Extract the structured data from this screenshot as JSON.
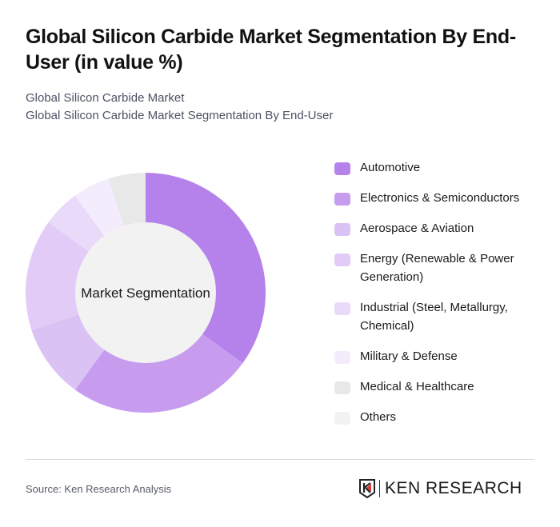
{
  "header": {
    "title": "Global Silicon Carbide Market Segmentation By End-User (in value %)",
    "subtitle_line1": "Global Silicon Carbide Market",
    "subtitle_line2": "Global Silicon Carbide Market Segmentation By End-User"
  },
  "chart": {
    "center_label": "Market Segmentation"
  },
  "legend": [
    {
      "label": "Automotive",
      "color": "#b582eb"
    },
    {
      "label": "Electronics & Semiconductors",
      "color": "#c79cef"
    },
    {
      "label": "Aerospace & Aviation",
      "color": "#dbc2f5"
    },
    {
      "label": "Energy (Renewable & Power Generation)",
      "color": "#e2ccf7"
    },
    {
      "label": "Industrial (Steel, Metallurgy, Chemical)",
      "color": "#e9dafa"
    },
    {
      "label": "Military & Defense",
      "color": "#f3ecfd"
    },
    {
      "label": "Medical & Healthcare",
      "color": "#e8e8e8"
    },
    {
      "label": "Others",
      "color": "#f2f2f2"
    }
  ],
  "footer": {
    "source": "Source: Ken Research Analysis",
    "logo_text": "KEN RESEARCH"
  },
  "chart_data": {
    "type": "pie",
    "title": "Global Silicon Carbide Market Segmentation By End-User (in value %)",
    "subtitle": "Global Silicon Carbide Market Segmentation By End-User",
    "center_label": "Market Segmentation",
    "donut": true,
    "categories": [
      "Automotive",
      "Electronics & Semiconductors",
      "Aerospace & Aviation",
      "Energy (Renewable & Power Generation)",
      "Industrial (Steel, Metallurgy, Chemical)",
      "Military & Defense",
      "Medical & Healthcare",
      "Others"
    ],
    "values": [
      35,
      25,
      10,
      15,
      5,
      5,
      5,
      0
    ],
    "colors": [
      "#b582eb",
      "#c79cef",
      "#dbc2f5",
      "#e2ccf7",
      "#e9dafa",
      "#f3ecfd",
      "#e8e8e8",
      "#f2f2f2"
    ],
    "legend_position": "right"
  }
}
